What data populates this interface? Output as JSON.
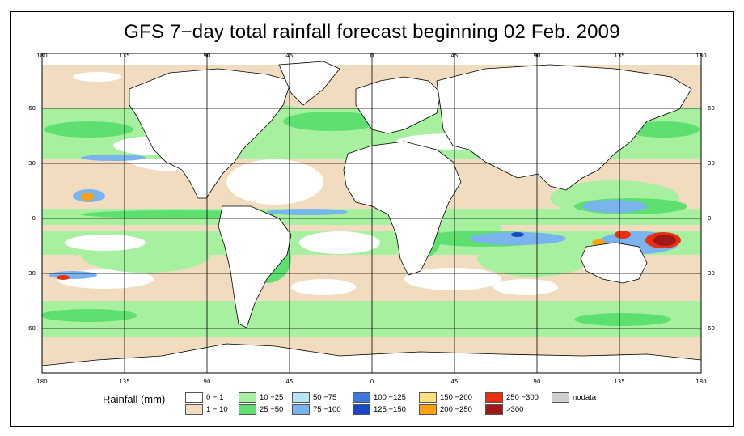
{
  "title": "GFS 7−day total rainfall forecast beginning 02 Feb. 2009",
  "axes": {
    "top_lon_labels": [
      "180",
      "135",
      "90",
      "45",
      "0",
      "45",
      "90",
      "135",
      "180"
    ],
    "bottom_lon_labels": [
      "180",
      "135",
      "90",
      "45",
      "0",
      "45",
      "90",
      "135",
      "180"
    ],
    "left_lat_labels": [
      "60",
      "30",
      "0",
      "30",
      "60"
    ],
    "right_lat_labels": [
      "60",
      "30",
      "0",
      "30",
      "60"
    ]
  },
  "legend": {
    "title": "Rainfall (mm)",
    "items": [
      {
        "label": "0 − 1",
        "color": "#ffffff"
      },
      {
        "label": "1 − 10",
        "color": "#f2dcc0"
      },
      {
        "label": "10 −25",
        "color": "#a6f0a0"
      },
      {
        "label": "25 −50",
        "color": "#5ee070"
      },
      {
        "label": "50 −75",
        "color": "#b4e6f8"
      },
      {
        "label": "75 −100",
        "color": "#7ab4ee"
      },
      {
        "label": "100 −125",
        "color": "#3c78e0"
      },
      {
        "label": "125 −150",
        "color": "#1848c8"
      },
      {
        "label": "150 −200",
        "color": "#ffe080"
      },
      {
        "label": "200 −250",
        "color": "#ffa010"
      },
      {
        "label": "250 −300",
        "color": "#e83010"
      },
      {
        "label": ">300",
        "color": "#a01818"
      },
      {
        "label": "nodata",
        "color": "#d0d0d0"
      }
    ]
  },
  "colors": {
    "ocean_base": "#f2dcc0",
    "land": "#ffffff",
    "grid": "#000000"
  }
}
